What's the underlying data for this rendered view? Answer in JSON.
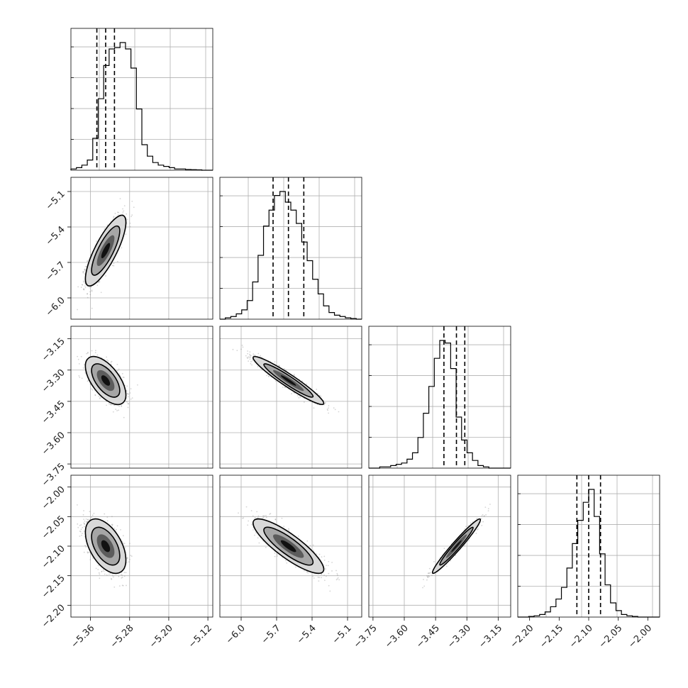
{
  "chart_data": {
    "type": "corner",
    "grid": true,
    "colors": {
      "marks": "#000000",
      "grid": "#b0b0b0",
      "samples": "#888888"
    },
    "params": [
      {
        "index": 0,
        "range": [
          -5.4,
          -5.11
        ],
        "ticks": [
          -5.36,
          -5.28,
          -5.2,
          -5.12
        ],
        "tick_labels": [
          "−5.36",
          "−5.28",
          "−5.20",
          "−5.12"
        ],
        "quantiles": [
          -5.347,
          -5.329,
          -5.311
        ],
        "median": -5.329,
        "sigma": 0.018
      },
      {
        "index": 1,
        "range": [
          -6.18,
          -4.98
        ],
        "ticks": [
          -6.0,
          -5.7,
          -5.4,
          -5.1
        ],
        "tick_labels": [
          "−6.0",
          "−5.7",
          "−5.4",
          "−5.1"
        ],
        "quantiles": [
          -5.73,
          -5.6,
          -5.47
        ],
        "median": -5.6,
        "sigma": 0.13
      },
      {
        "index": 2,
        "range": [
          -3.77,
          -3.09
        ],
        "ticks": [
          -3.75,
          -3.6,
          -3.45,
          -3.3,
          -3.15
        ],
        "tick_labels": [
          "−3.75",
          "−3.60",
          "−3.45",
          "−3.30",
          "−3.15"
        ],
        "quantiles": [
          -3.41,
          -3.35,
          -3.31
        ],
        "median": -3.35,
        "sigma": 0.05
      },
      {
        "index": 3,
        "range": [
          -2.22,
          -1.98
        ],
        "ticks": [
          -2.2,
          -2.15,
          -2.1,
          -2.05,
          -2.0
        ],
        "tick_labels": [
          "−2.20",
          "−2.15",
          "−2.10",
          "−2.05",
          "−2.00"
        ],
        "quantiles": [
          -2.12,
          -2.1,
          -2.08
        ],
        "median": -2.1,
        "sigma": 0.02
      }
    ],
    "histograms": [
      {
        "param": 0,
        "bins": 26,
        "counts": [
          1,
          2,
          4,
          8,
          25,
          56,
          82,
          95,
          96,
          100,
          95,
          80,
          48,
          20,
          11,
          6,
          4,
          3,
          2,
          1,
          1,
          0.6,
          0.4,
          0.3,
          0,
          0
        ]
      },
      {
        "param": 1,
        "bins": 26,
        "counts": [
          0,
          1,
          2,
          4,
          7,
          14,
          28,
          48,
          70,
          82,
          93,
          96,
          88,
          82,
          72,
          58,
          44,
          30,
          19,
          10,
          5,
          3,
          2,
          1,
          0.5,
          0
        ]
      },
      {
        "param": 2,
        "bins": 26,
        "counts": [
          0,
          0,
          1,
          1,
          2,
          3,
          4,
          7,
          12,
          24,
          43,
          64,
          86,
          100,
          98,
          78,
          40,
          22,
          12,
          6,
          2,
          1,
          0,
          0,
          0,
          0
        ]
      },
      {
        "param": 3,
        "bins": 26,
        "counts": [
          0,
          0,
          0.5,
          1,
          2,
          4,
          8,
          14,
          23,
          38,
          57,
          75,
          89,
          99,
          78,
          49,
          25,
          11,
          5,
          2,
          1,
          0.5,
          0,
          0,
          0,
          0
        ]
      }
    ],
    "pairs": [
      {
        "x_param": 0,
        "y_param": 1,
        "correlation": 0.8
      },
      {
        "x_param": 0,
        "y_param": 2,
        "correlation": -0.6
      },
      {
        "x_param": 1,
        "y_param": 2,
        "correlation": -0.95
      },
      {
        "x_param": 0,
        "y_param": 3,
        "correlation": -0.5
      },
      {
        "x_param": 1,
        "y_param": 3,
        "correlation": -0.85
      },
      {
        "x_param": 2,
        "y_param": 3,
        "correlation": 0.97
      }
    ]
  }
}
